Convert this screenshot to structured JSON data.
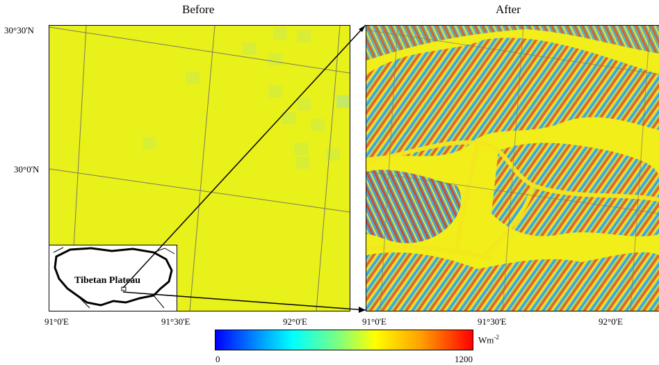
{
  "panels": {
    "before": {
      "title": "Before"
    },
    "after": {
      "title": "After"
    }
  },
  "axes": {
    "lat_ticks": [
      "30°30'N",
      "30°0'N"
    ],
    "lon_ticks_before": [
      "91°0'E",
      "91°30'E",
      "92°0'E"
    ],
    "lon_ticks_after": [
      "91°0'E",
      "91°30'E",
      "92°0'E"
    ]
  },
  "inset": {
    "label": "Tibetan Plateau"
  },
  "colorbar": {
    "min_label": "0",
    "max_label": "1200",
    "unit": "Wm",
    "unit_sup": "-2",
    "colors": [
      "#0000ff",
      "#00ffff",
      "#7fff7f",
      "#ffff00",
      "#ff7f00",
      "#ff0000"
    ]
  },
  "colors": {
    "before_fill": "#e8f11a",
    "grid": "#7a7a5a"
  }
}
